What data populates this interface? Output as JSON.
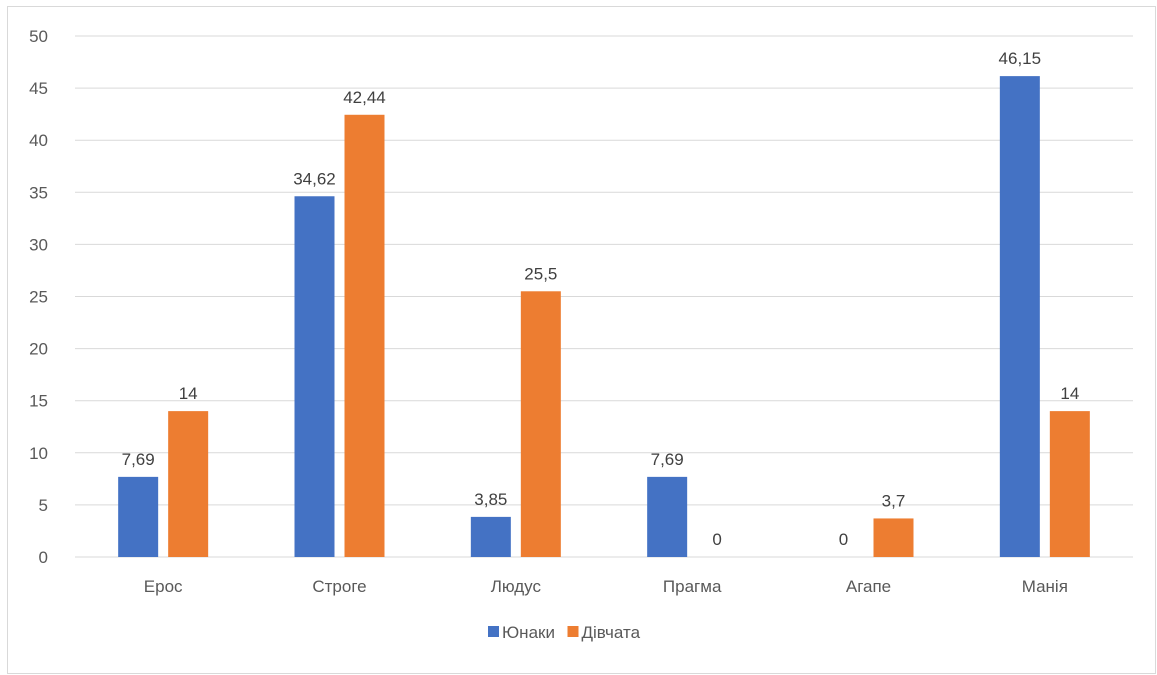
{
  "chart_data": {
    "type": "bar",
    "categories": [
      "Ерос",
      "Строге",
      "Людус",
      "Прагма",
      "Агапе",
      "Манія"
    ],
    "series": [
      {
        "name": "Юнаки",
        "color": "#4472c4",
        "values": [
          7.69,
          34.62,
          3.85,
          7.69,
          0,
          46.15
        ],
        "labels": [
          "7,69",
          "34,62",
          "3,85",
          "7,69",
          "0",
          "46,15"
        ]
      },
      {
        "name": "Дівчата",
        "color": "#ed7d31",
        "values": [
          14,
          42.44,
          25.5,
          0,
          3.7,
          14
        ],
        "labels": [
          "14",
          "42,44",
          "25,5",
          "0",
          "3,7",
          "14"
        ]
      }
    ],
    "ylim": [
      0,
      50
    ],
    "yticks": [
      0,
      5,
      10,
      15,
      20,
      25,
      30,
      35,
      40,
      45,
      50
    ],
    "grid": true,
    "legend_position": "bottom"
  }
}
